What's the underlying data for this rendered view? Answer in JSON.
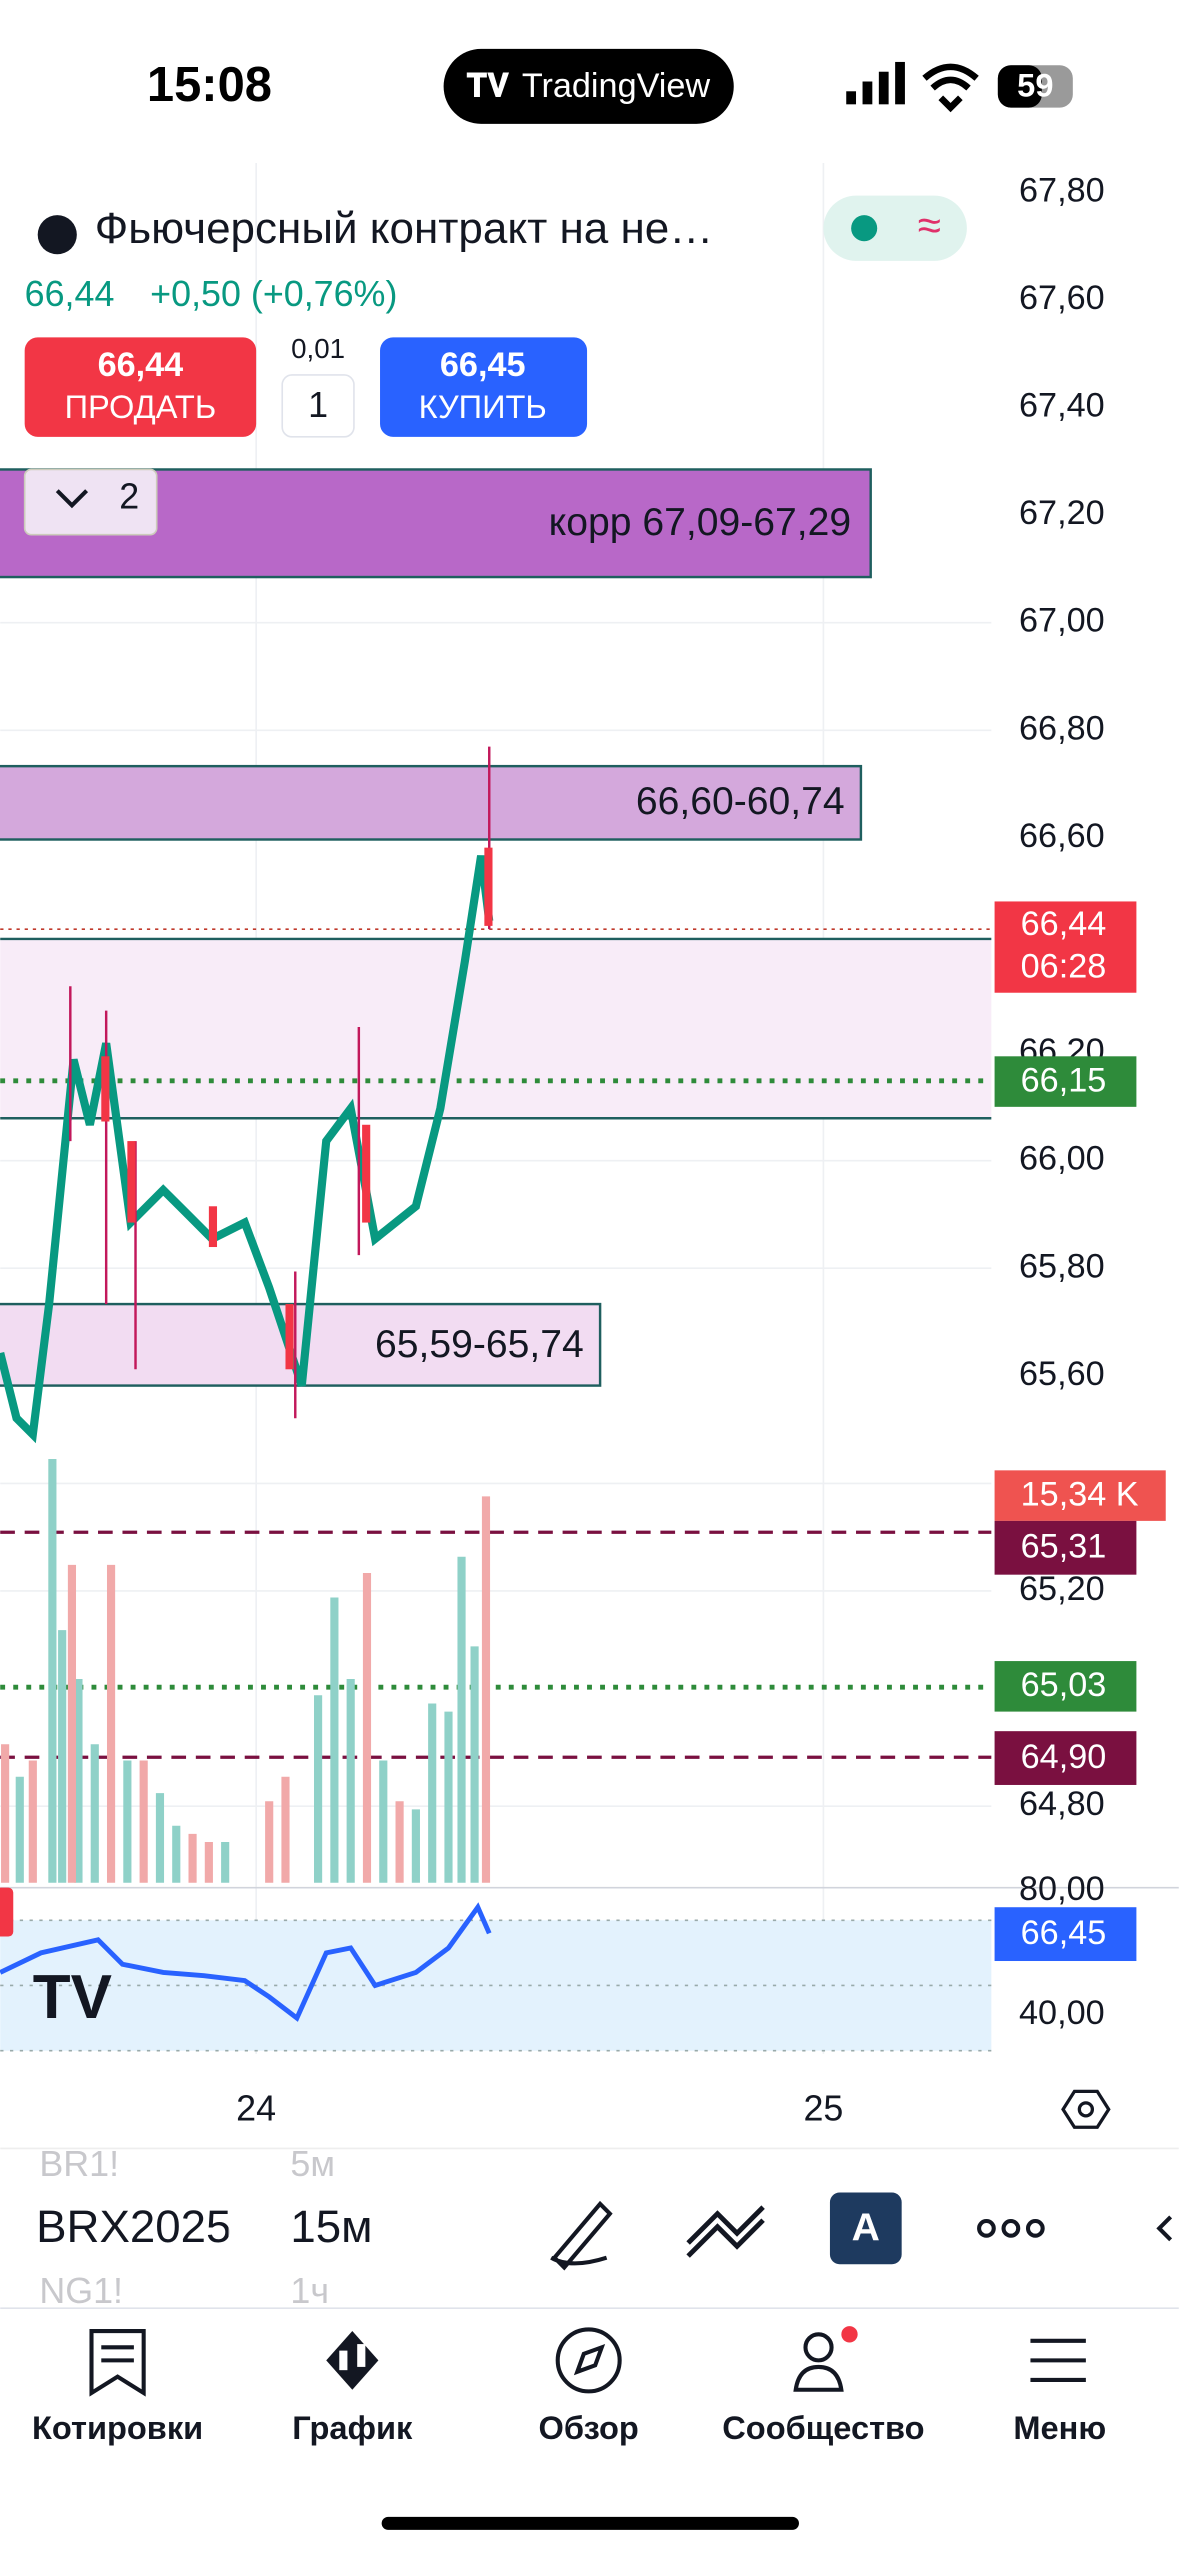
{
  "status": {
    "time": "15:08",
    "app": "TradingView",
    "battery": "59"
  },
  "header": {
    "title": "Фьючерсный контракт на не…",
    "price": "66,44",
    "change": "+0,50 (+0,76%)"
  },
  "order": {
    "sell_price": "66,44",
    "sell_label": "ПРОДАТЬ",
    "step": "0,01",
    "quantity": "1",
    "buy_price": "66,45",
    "buy_label": "КУПИТЬ"
  },
  "zones": {
    "collapse_count": "2",
    "zone1": "корр 67,09-67,29",
    "zone2": "66,60-60,74",
    "zone3": "65,59-65,74"
  },
  "price_axis": [
    "67,80",
    "67,60",
    "67,40",
    "67,20",
    "67,00",
    "66,80",
    "66,60",
    "66,20",
    "66,00",
    "65,80",
    "65,60",
    "65,20",
    "64,80",
    "80,00",
    "40,00"
  ],
  "badges": {
    "last_price": "66,44",
    "countdown": "06:28",
    "level_green": "66,15",
    "volume": "15,34 K",
    "level_1": "65,31",
    "level_green_2": "65,03",
    "level_2": "64,90",
    "indicator": "66,45"
  },
  "time_axis": [
    "24",
    "25"
  ],
  "toolbar": {
    "symbol": "BRX2025",
    "symbol_prev": "BR1!",
    "symbol_next": "NG1!",
    "interval": "15м",
    "interval_prev": "5м",
    "interval_next": "1ч"
  },
  "nav": [
    "Котировки",
    "График",
    "Обзор",
    "Сообщество",
    "Меню"
  ]
}
